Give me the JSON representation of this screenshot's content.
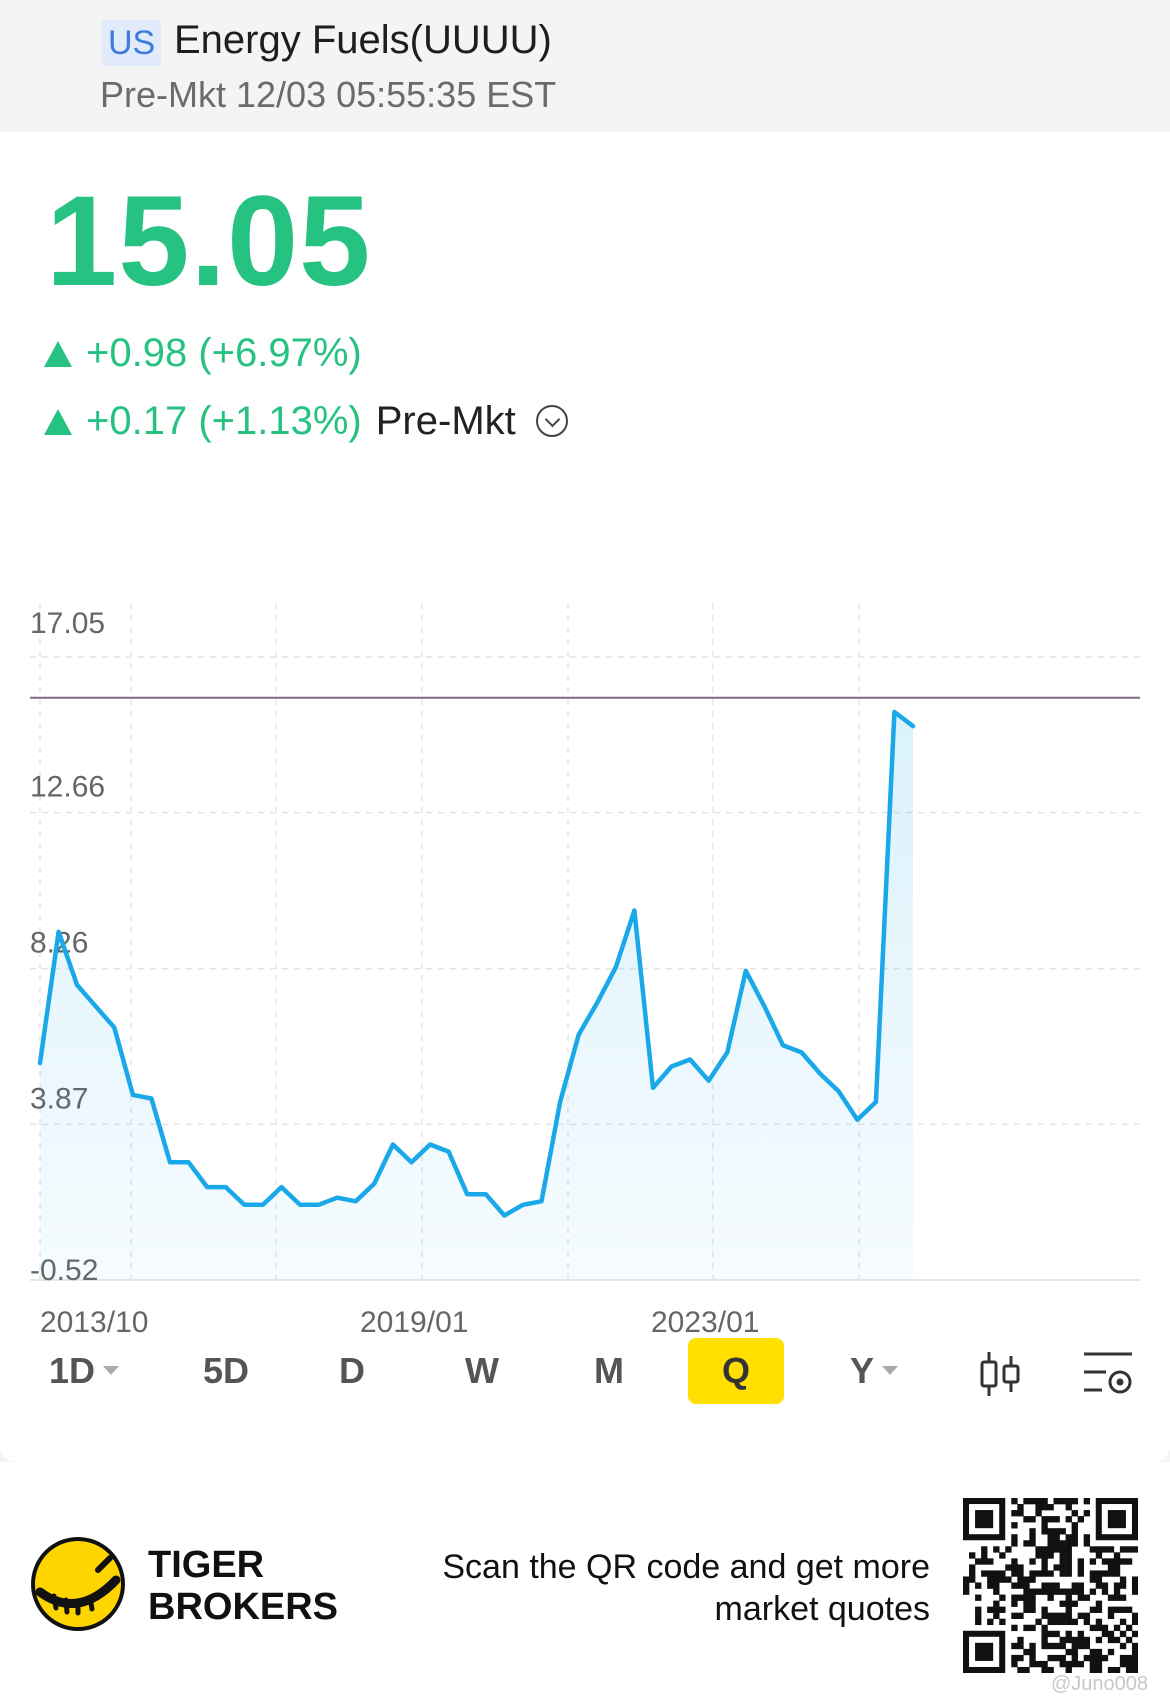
{
  "header": {
    "market_badge": "US",
    "title": "Energy Fuels(UUUU)",
    "session_info": "Pre-Mkt 12/03 05:55:35 EST"
  },
  "quote": {
    "price": "15.05",
    "change_regular": "+0.98 (+6.97%)",
    "change_premkt": "+0.17 (+1.13%)",
    "premkt_label": "Pre-Mkt",
    "up_color": "#26c281"
  },
  "chart_data": {
    "type": "area",
    "line_color": "#1aa8e8",
    "reference_line": 15.9,
    "reference_color": "#7d6b8a",
    "y_ticks": [
      "17.05",
      "12.66",
      "8.26",
      "3.87",
      "-0.52"
    ],
    "x_ticks": [
      "2013/10",
      "2019/01",
      "2023/01"
    ],
    "ylim": [
      -0.52,
      17.05
    ],
    "grid": true,
    "series": [
      {
        "values": [
          5.6,
          9.3,
          7.8,
          7.2,
          6.6,
          4.7,
          4.6,
          2.8,
          2.8,
          2.1,
          2.1,
          1.6,
          1.6,
          2.1,
          1.6,
          1.6,
          1.8,
          1.7,
          2.2,
          3.3,
          2.8,
          3.3,
          3.1,
          1.9,
          1.9,
          1.3,
          1.6,
          1.7,
          4.5,
          6.4,
          7.3,
          8.3,
          9.9,
          4.9,
          5.5,
          5.7,
          5.1,
          5.9,
          8.2,
          7.2,
          6.1,
          5.9,
          5.3,
          4.8,
          4.0,
          4.5,
          15.5,
          15.1
        ]
      }
    ]
  },
  "toolbar": {
    "timeframes": [
      "1D",
      "5D",
      "D",
      "W",
      "M",
      "Q",
      "Y"
    ],
    "active_index": 5,
    "candle_icon": "candlestick-icon",
    "settings_icon": "chart-settings-icon"
  },
  "footer": {
    "brand_line1": "TIGER",
    "brand_line2": "BROKERS",
    "qr_line1": "Scan the QR code and get more",
    "qr_line2": "market quotes",
    "watermark": "@Juno008",
    "logo_color": "#ffd500"
  }
}
